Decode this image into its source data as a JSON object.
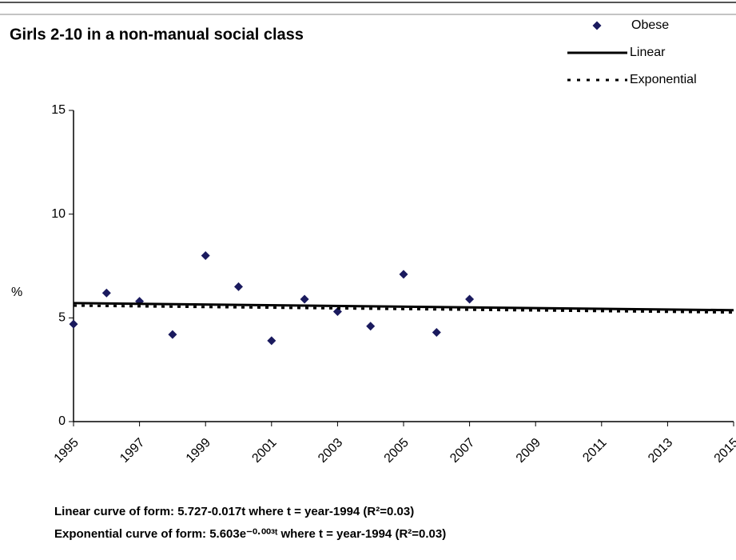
{
  "chart_data": {
    "type": "scatter",
    "title": "Girls 2-10 in a non-manual social class",
    "y_label": "%",
    "xlim": [
      1995,
      2015
    ],
    "xticks": [
      1995,
      1997,
      1999,
      2001,
      2003,
      2005,
      2007,
      2009,
      2011,
      2013,
      2015
    ],
    "ylim": [
      0,
      15
    ],
    "yticks": [
      0,
      5,
      10,
      15
    ],
    "legend": "top-right",
    "series": [
      {
        "name": "Obese",
        "color": "#1a1a5e",
        "style": "markers",
        "x": [
          1995,
          1996,
          1997,
          1998,
          1999,
          2000,
          2001,
          2002,
          2003,
          2004,
          2005,
          2006,
          2007
        ],
        "values": [
          4.7,
          6.2,
          5.8,
          4.2,
          8.0,
          6.5,
          3.9,
          5.9,
          5.3,
          4.6,
          7.1,
          4.3,
          5.9
        ]
      },
      {
        "name": "Linear",
        "color": "#000000",
        "style": "solid",
        "x": [
          1995,
          2015
        ],
        "values": [
          5.71,
          5.37
        ]
      },
      {
        "name": "Exponential",
        "color": "#000000",
        "style": "dotted",
        "x": [
          1995,
          2015
        ],
        "values": [
          5.59,
          5.26
        ]
      }
    ],
    "annotations": [
      "Linear curve of form: 5.727-0.017t  where t = year-1994 (R²=0.03)",
      "Exponential curve of form: 5.603e⁻⁰·⁰⁰³ᵗ where t = year-1994 (R²=0.03)"
    ]
  }
}
